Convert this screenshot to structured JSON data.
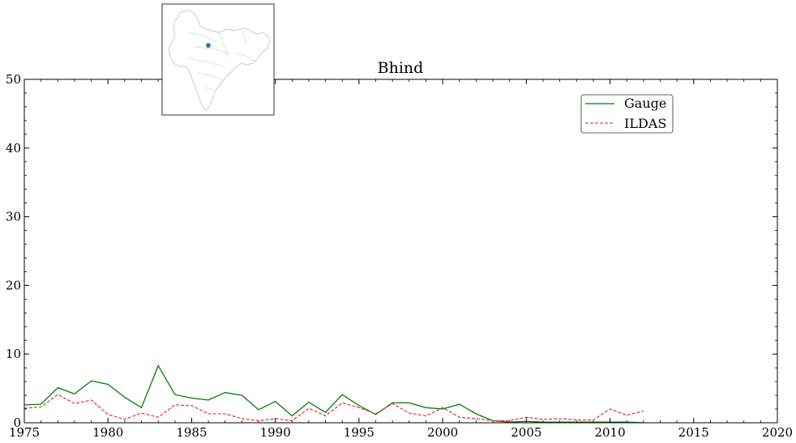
{
  "chart_data": {
    "type": "line",
    "title": "Bhind",
    "xlabel": "",
    "ylabel": "",
    "xlim": [
      1975,
      2020
    ],
    "ylim": [
      0,
      50
    ],
    "xticks": [
      1975,
      1980,
      1985,
      1990,
      1995,
      2000,
      2005,
      2010,
      2015,
      2020
    ],
    "yticks": [
      0,
      10,
      20,
      30,
      40,
      50
    ],
    "grid": false,
    "legend": "top-right",
    "series": [
      {
        "name": "Gauge",
        "color": "#008000",
        "linestyle": "solid",
        "x": [
          1975,
          1976,
          1977,
          1978,
          1979,
          1980,
          1981,
          1982,
          1983,
          1984,
          1985,
          1986,
          1987,
          1988,
          1989,
          1990,
          1991,
          1992,
          1993,
          1994,
          1995,
          1996,
          1997,
          1998,
          1999,
          2000,
          2001,
          2002,
          2003,
          2004,
          2005,
          2006,
          2007,
          2008,
          2009,
          2010,
          2011,
          2012
        ],
        "y": [
          2.6,
          2.7,
          5.1,
          4.2,
          6.1,
          5.6,
          3.7,
          2.2,
          8.3,
          4.1,
          3.6,
          3.3,
          4.4,
          4.0,
          1.9,
          3.1,
          1.0,
          3.0,
          1.5,
          4.1,
          2.5,
          1.2,
          2.9,
          2.9,
          2.2,
          2.0,
          2.7,
          1.3,
          0.3,
          0.1,
          0.2,
          0.1,
          0.1,
          0.1,
          0.1,
          0.1,
          0.1,
          0.0
        ]
      },
      {
        "name": "ILDAS",
        "color": "#e8202a",
        "linestyle": "dashed",
        "x": [
          1975,
          1976,
          1977,
          1978,
          1979,
          1980,
          1981,
          1982,
          1983,
          1984,
          1985,
          1986,
          1987,
          1988,
          1989,
          1990,
          1991,
          1992,
          1993,
          1994,
          1995,
          1996,
          1997,
          1998,
          1999,
          2000,
          2001,
          2002,
          2003,
          2004,
          2005,
          2006,
          2007,
          2008,
          2009,
          2010,
          2011,
          2012
        ],
        "y": [
          2.1,
          2.3,
          4.1,
          2.8,
          3.3,
          1.2,
          0.5,
          1.4,
          0.8,
          2.6,
          2.5,
          1.3,
          1.3,
          0.6,
          0.3,
          0.6,
          0.3,
          2.1,
          1.0,
          2.9,
          2.2,
          1.3,
          2.8,
          1.4,
          1.0,
          2.2,
          0.8,
          0.6,
          0.3,
          0.3,
          0.8,
          0.5,
          0.6,
          0.4,
          0.4,
          2.0,
          1.1,
          1.7
        ]
      }
    ],
    "inset_map": {
      "marker_color": "#3a78b0"
    }
  }
}
